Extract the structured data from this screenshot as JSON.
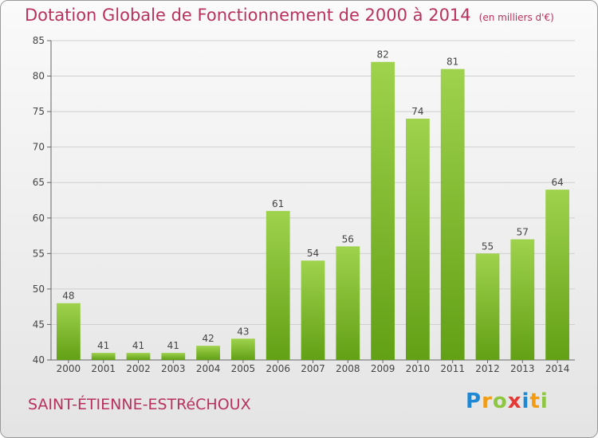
{
  "title": "Dotation Globale de Fonctionnement de 2000 à 2014",
  "unit": "(en milliers d'€)",
  "commune": "SAINT-ÉTIENNE-ESTRéCHOUX",
  "logo": {
    "letters": [
      "P",
      "r",
      "o",
      "x",
      "i",
      "t",
      "i"
    ],
    "colors": [
      "#1e88d4",
      "#f39c12",
      "#8dc63f",
      "#e53935",
      "#1e88d4",
      "#f39c12",
      "#8dc63f"
    ]
  },
  "chart_data": {
    "type": "bar",
    "title": "Dotation Globale de Fonctionnement de 2000 à 2014",
    "xlabel": "",
    "ylabel": "",
    "categories": [
      "2000",
      "2001",
      "2002",
      "2003",
      "2004",
      "2005",
      "2006",
      "2007",
      "2008",
      "2009",
      "2010",
      "2011",
      "2012",
      "2013",
      "2014"
    ],
    "values": [
      48,
      41,
      41,
      41,
      42,
      43,
      61,
      54,
      56,
      82,
      74,
      81,
      55,
      57,
      64
    ],
    "ylim": [
      40,
      85
    ],
    "yticks": [
      40,
      45,
      50,
      55,
      60,
      65,
      70,
      75,
      80,
      85
    ],
    "grid": true,
    "bar_color": "#8cc63f"
  }
}
